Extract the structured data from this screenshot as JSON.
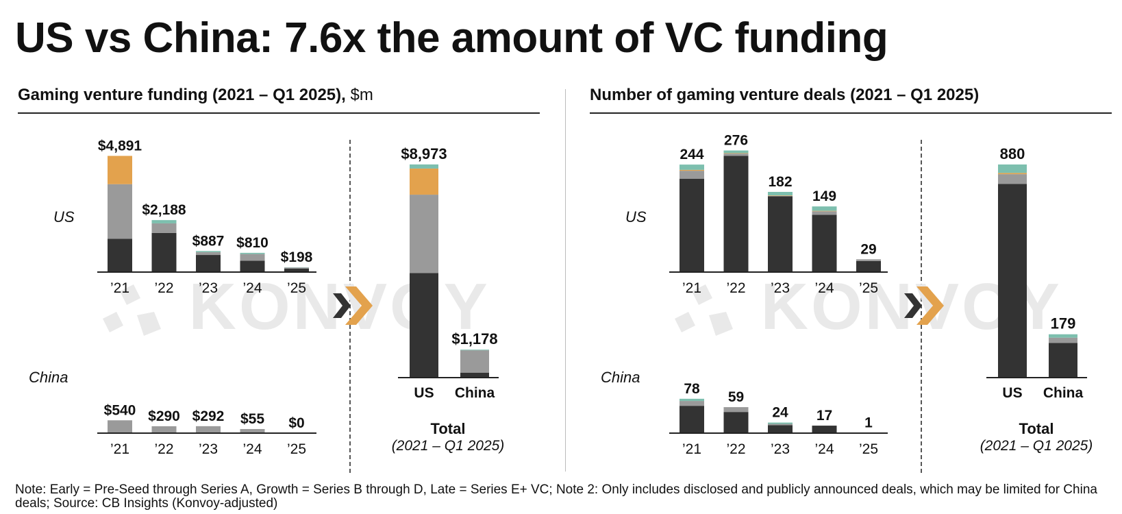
{
  "title": "US vs China: 7.6x the amount of VC funding",
  "panels": {
    "funding": {
      "title": "Gaming venture funding (2021 – Q1 2025),",
      "unit": "$m"
    },
    "deals": {
      "title": "Number of gaming venture deals (2021 – Q1 2025)"
    }
  },
  "row_labels": {
    "us": "US",
    "china": "China"
  },
  "total_label": "Total",
  "total_sub": "(2021 – Q1 2025)",
  "watermark": "KONVOY",
  "icons": {
    "watermark": "konvoy-logo-icon",
    "arrow": "chevron-arrow-icon"
  },
  "colors": {
    "early": "#333333",
    "growth": "#9a9a9a",
    "late": "#e3a24d",
    "vc_other": "#7dbfae",
    "yellow_line": "#d9c75a",
    "arrow_dark": "#333333",
    "arrow_accent": "#e3a24d"
  },
  "footnote": "Note: Early = Pre-Seed through Series A, Growth = Series B through D, Late = Series E+ VC; Note 2: Only includes disclosed and publicly announced deals, which may be limited for China deals; Source: CB Insights (Konvoy-adjusted)",
  "chart_data": [
    {
      "type": "bar",
      "id": "funding-us",
      "stacked": true,
      "categories": [
        "’21",
        "’22",
        "’23",
        "’24",
        "’25"
      ],
      "labels": [
        "$4,891",
        "$2,188",
        "$887",
        "$810",
        "$198"
      ],
      "ylim": [
        0,
        9000
      ],
      "series": [
        {
          "key": "early",
          "values": [
            1400,
            1650,
            720,
            480,
            150
          ]
        },
        {
          "key": "growth",
          "values": [
            2300,
            400,
            120,
            280,
            40
          ]
        },
        {
          "key": "late",
          "values": [
            1191,
            0,
            0,
            0,
            0
          ]
        },
        {
          "key": "vc_other",
          "values": [
            0,
            138,
            47,
            50,
            8
          ]
        }
      ]
    },
    {
      "type": "bar",
      "id": "funding-china",
      "stacked": true,
      "categories": [
        "’21",
        "’22",
        "’23",
        "’24",
        "’25"
      ],
      "labels": [
        "$540",
        "$290",
        "$292",
        "$55",
        "$0"
      ],
      "ylim": [
        0,
        9000
      ],
      "series": [
        {
          "key": "early",
          "values": [
            0,
            0,
            0,
            0,
            0
          ]
        },
        {
          "key": "growth",
          "values": [
            540,
            290,
            292,
            55,
            0
          ]
        }
      ]
    },
    {
      "type": "bar",
      "id": "funding-total",
      "stacked": true,
      "categories": [
        "US",
        "China"
      ],
      "labels": [
        "$8,973",
        "$1,178"
      ],
      "ylim": [
        0,
        9000
      ],
      "series": [
        {
          "key": "early",
          "values": [
            4400,
            210
          ]
        },
        {
          "key": "growth",
          "values": [
            3300,
            940
          ]
        },
        {
          "key": "late",
          "values": [
            1100,
            0
          ]
        },
        {
          "key": "vc_other",
          "values": [
            173,
            28
          ]
        }
      ]
    },
    {
      "type": "bar",
      "id": "deals-us",
      "stacked": true,
      "categories": [
        "’21",
        "’22",
        "’23",
        "’24",
        "’25"
      ],
      "labels": [
        "244",
        "276",
        "182",
        "149",
        "29"
      ],
      "ylim": [
        0,
        280
      ],
      "series": [
        {
          "key": "early",
          "values": [
            212,
            264,
            172,
            130,
            25
          ]
        },
        {
          "key": "growth",
          "values": [
            18,
            5,
            1,
            8,
            4
          ]
        },
        {
          "key": "late",
          "values": [
            2,
            1,
            1,
            1,
            0
          ]
        },
        {
          "key": "vc_other",
          "values": [
            12,
            6,
            8,
            10,
            0
          ]
        }
      ]
    },
    {
      "type": "bar",
      "id": "deals-china",
      "stacked": true,
      "categories": [
        "’21",
        "’22",
        "’23",
        "’24",
        "’25"
      ],
      "labels": [
        "78",
        "59",
        "24",
        "17",
        "1"
      ],
      "ylim": [
        0,
        280
      ],
      "series": [
        {
          "key": "early",
          "values": [
            62,
            48,
            18,
            17,
            1
          ]
        },
        {
          "key": "growth",
          "values": [
            11,
            11,
            3,
            0,
            0
          ]
        },
        {
          "key": "vc_other",
          "values": [
            5,
            0,
            3,
            0,
            0
          ]
        }
      ]
    },
    {
      "type": "bar",
      "id": "deals-total",
      "stacked": true,
      "categories": [
        "US",
        "China"
      ],
      "labels": [
        "880",
        "179"
      ],
      "ylim": [
        0,
        880
      ],
      "series": [
        {
          "key": "early",
          "values": [
            800,
            143
          ]
        },
        {
          "key": "growth",
          "values": [
            40,
            22
          ]
        },
        {
          "key": "late",
          "values": [
            5,
            0
          ]
        },
        {
          "key": "vc_other",
          "values": [
            35,
            14
          ]
        }
      ]
    }
  ]
}
